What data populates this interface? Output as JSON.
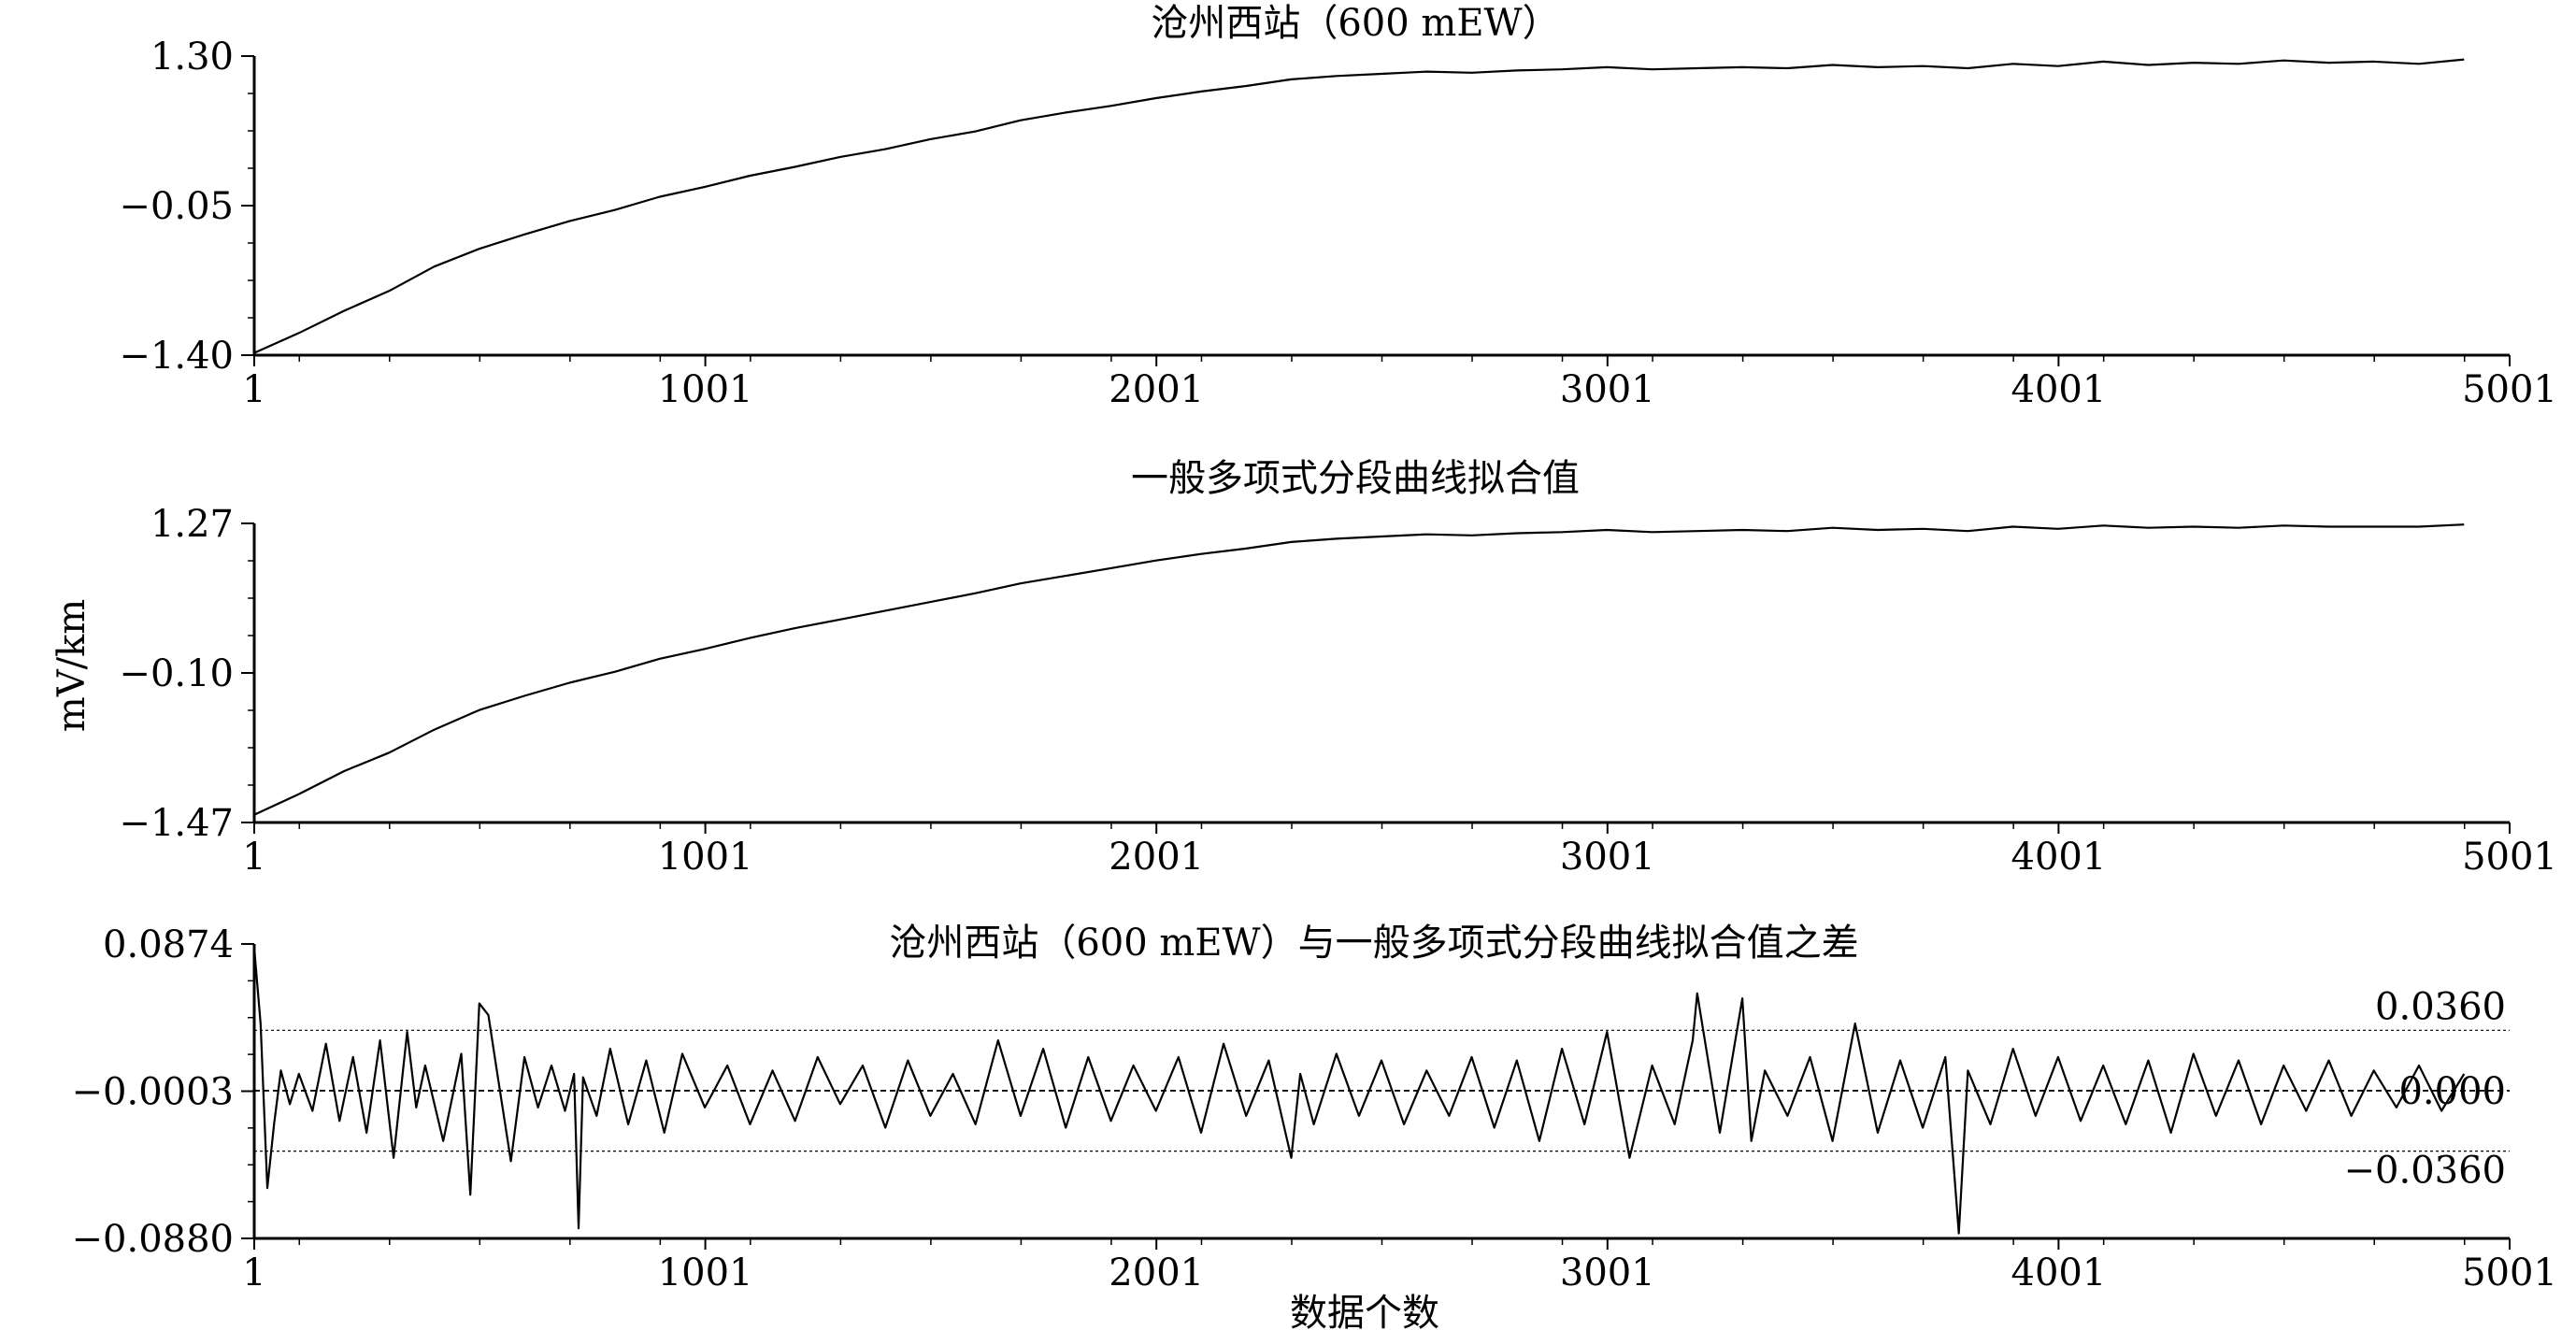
{
  "figure": {
    "ylabel": "mV/km",
    "xlabel": "数据个数"
  },
  "chart_data": [
    {
      "type": "line",
      "title": "沧州西站（600 mEW）",
      "xlim": [
        1,
        5001
      ],
      "ylim": [
        -1.4,
        1.3
      ],
      "x_ticks": [
        "1",
        "1001",
        "2001",
        "3001",
        "4001",
        "5001"
      ],
      "y_ticks": [
        "1.30",
        "−0.05",
        "−1.40"
      ],
      "series": [
        {
          "x": [
            1,
            100,
            200,
            300,
            400,
            500,
            600,
            700,
            800,
            900,
            1000,
            1100,
            1200,
            1300,
            1400,
            1500,
            1600,
            1700,
            1800,
            1900,
            2000,
            2100,
            2200,
            2300,
            2400,
            2500,
            2600,
            2700,
            2800,
            2900,
            3000,
            3100,
            3200,
            3300,
            3400,
            3500,
            3600,
            3700,
            3800,
            3900,
            4000,
            4100,
            4200,
            4300,
            4400,
            4500,
            4600,
            4700,
            4800,
            4900
          ],
          "values": [
            -1.38,
            -1.2,
            -1.0,
            -0.82,
            -0.6,
            -0.44,
            -0.31,
            -0.19,
            -0.09,
            0.03,
            0.12,
            0.22,
            0.3,
            0.39,
            0.46,
            0.55,
            0.62,
            0.72,
            0.79,
            0.85,
            0.92,
            0.98,
            1.03,
            1.09,
            1.12,
            1.14,
            1.16,
            1.15,
            1.17,
            1.18,
            1.2,
            1.18,
            1.19,
            1.2,
            1.19,
            1.22,
            1.2,
            1.21,
            1.19,
            1.23,
            1.21,
            1.25,
            1.22,
            1.24,
            1.23,
            1.26,
            1.24,
            1.25,
            1.23,
            1.27
          ]
        }
      ]
    },
    {
      "type": "line",
      "title": "一般多项式分段曲线拟合值",
      "xlim": [
        1,
        5001
      ],
      "ylim": [
        -1.47,
        1.27
      ],
      "x_ticks": [
        "1",
        "1001",
        "2001",
        "3001",
        "4001",
        "5001"
      ],
      "y_ticks": [
        "1.27",
        "−0.10",
        "−1.47"
      ],
      "series": [
        {
          "x": [
            1,
            100,
            200,
            300,
            400,
            500,
            600,
            700,
            800,
            900,
            1000,
            1100,
            1200,
            1300,
            1400,
            1500,
            1600,
            1700,
            1800,
            1900,
            2000,
            2100,
            2200,
            2300,
            2400,
            2500,
            2600,
            2700,
            2800,
            2900,
            3000,
            3100,
            3200,
            3300,
            3400,
            3500,
            3600,
            3700,
            3800,
            3900,
            4000,
            4100,
            4200,
            4300,
            4400,
            4500,
            4600,
            4700,
            4800,
            4900
          ],
          "values": [
            -1.4,
            -1.21,
            -1.0,
            -0.83,
            -0.62,
            -0.44,
            -0.31,
            -0.19,
            -0.09,
            0.03,
            0.12,
            0.22,
            0.31,
            0.39,
            0.47,
            0.55,
            0.63,
            0.72,
            0.79,
            0.86,
            0.93,
            0.99,
            1.04,
            1.1,
            1.13,
            1.15,
            1.17,
            1.16,
            1.18,
            1.19,
            1.21,
            1.19,
            1.2,
            1.21,
            1.2,
            1.23,
            1.21,
            1.22,
            1.2,
            1.24,
            1.22,
            1.25,
            1.23,
            1.24,
            1.23,
            1.25,
            1.24,
            1.24,
            1.24,
            1.26
          ]
        }
      ]
    },
    {
      "type": "line",
      "title": "沧州西站（600 mEW）与一般多项式分段曲线拟合值之差",
      "xlim": [
        1,
        5001
      ],
      "ylim": [
        -0.088,
        0.0874
      ],
      "x_ticks": [
        "1",
        "1001",
        "2001",
        "3001",
        "4001",
        "5001"
      ],
      "y_ticks": [
        "0.0874",
        "−0.0003",
        "−0.0880"
      ],
      "reference_lines": [
        {
          "value": 0.036,
          "label": "0.0360"
        },
        {
          "value": 0.0,
          "label": "0.000"
        },
        {
          "value": -0.036,
          "label": "−0.0360"
        }
      ],
      "series": [
        {
          "x": [
            1,
            15,
            30,
            45,
            60,
            80,
            100,
            130,
            160,
            190,
            220,
            250,
            280,
            310,
            340,
            360,
            380,
            420,
            460,
            480,
            500,
            520,
            540,
            570,
            600,
            630,
            660,
            690,
            710,
            720,
            730,
            760,
            790,
            830,
            870,
            910,
            950,
            1000,
            1050,
            1100,
            1150,
            1200,
            1250,
            1300,
            1350,
            1400,
            1450,
            1500,
            1550,
            1600,
            1650,
            1700,
            1750,
            1800,
            1850,
            1900,
            1950,
            2000,
            2050,
            2100,
            2150,
            2200,
            2250,
            2300,
            2320,
            2350,
            2400,
            2450,
            2500,
            2550,
            2600,
            2650,
            2700,
            2750,
            2800,
            2850,
            2900,
            2950,
            3000,
            3050,
            3100,
            3150,
            3190,
            3200,
            3250,
            3300,
            3320,
            3350,
            3400,
            3450,
            3500,
            3550,
            3600,
            3650,
            3700,
            3750,
            3780,
            3800,
            3850,
            3900,
            3950,
            4000,
            4050,
            4100,
            4150,
            4200,
            4250,
            4300,
            4350,
            4400,
            4450,
            4500,
            4550,
            4600,
            4650,
            4700,
            4750,
            4800,
            4850,
            4900
          ],
          "values": [
            0.085,
            0.04,
            -0.058,
            -0.02,
            0.012,
            -0.008,
            0.01,
            -0.012,
            0.028,
            -0.018,
            0.02,
            -0.025,
            0.03,
            -0.04,
            0.035,
            -0.01,
            0.015,
            -0.03,
            0.022,
            -0.062,
            0.052,
            0.045,
            0.01,
            -0.042,
            0.02,
            -0.01,
            0.015,
            -0.012,
            0.01,
            -0.082,
            0.008,
            -0.015,
            0.025,
            -0.02,
            0.018,
            -0.025,
            0.022,
            -0.01,
            0.015,
            -0.02,
            0.012,
            -0.018,
            0.02,
            -0.008,
            0.015,
            -0.022,
            0.018,
            -0.015,
            0.01,
            -0.02,
            0.03,
            -0.015,
            0.025,
            -0.022,
            0.02,
            -0.018,
            0.015,
            -0.012,
            0.02,
            -0.025,
            0.028,
            -0.015,
            0.018,
            -0.04,
            0.01,
            -0.02,
            0.022,
            -0.015,
            0.018,
            -0.02,
            0.012,
            -0.015,
            0.02,
            -0.022,
            0.018,
            -0.03,
            0.025,
            -0.02,
            0.035,
            -0.04,
            0.015,
            -0.02,
            0.03,
            0.058,
            -0.025,
            0.055,
            -0.03,
            0.012,
            -0.015,
            0.02,
            -0.03,
            0.04,
            -0.025,
            0.018,
            -0.022,
            0.02,
            -0.085,
            0.012,
            -0.02,
            0.025,
            -0.015,
            0.02,
            -0.018,
            0.015,
            -0.02,
            0.018,
            -0.025,
            0.022,
            -0.015,
            0.018,
            -0.02,
            0.015,
            -0.012,
            0.018,
            -0.015,
            0.012,
            -0.01,
            0.015,
            -0.012,
            0.01
          ]
        }
      ]
    }
  ]
}
